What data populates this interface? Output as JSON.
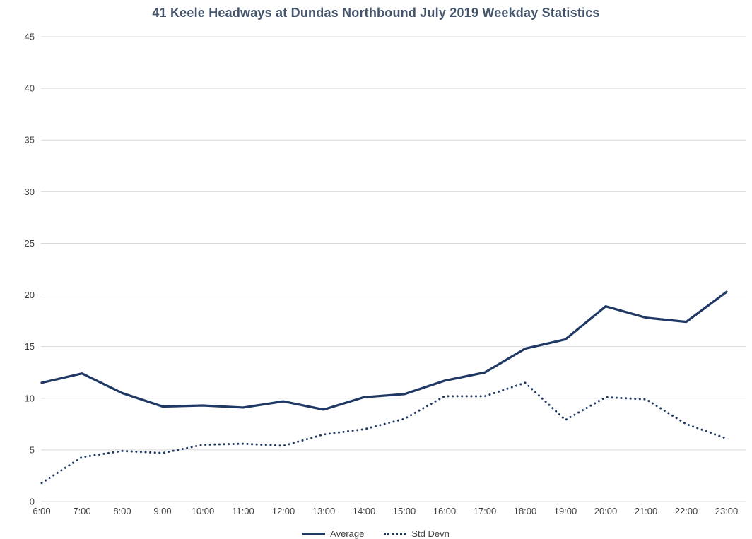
{
  "chart_data": {
    "type": "line",
    "title": "41 Keele Headways at Dundas Northbound July 2019 Weekday Statistics",
    "xlabel": "",
    "ylabel": "",
    "categories": [
      "6:00",
      "7:00",
      "8:00",
      "9:00",
      "10:00",
      "11:00",
      "12:00",
      "13:00",
      "14:00",
      "15:00",
      "16:00",
      "17:00",
      "18:00",
      "19:00",
      "20:00",
      "21:00",
      "22:00",
      "23:00"
    ],
    "series": [
      {
        "name": "Average",
        "style": "solid",
        "values": [
          11.5,
          12.4,
          10.5,
          9.2,
          9.3,
          9.1,
          9.7,
          8.9,
          10.1,
          10.4,
          11.7,
          12.5,
          14.8,
          15.7,
          18.9,
          17.8,
          17.4,
          20.3
        ]
      },
      {
        "name": "Std Devn",
        "style": "dotted",
        "values": [
          1.8,
          4.3,
          4.9,
          4.7,
          5.5,
          5.6,
          5.4,
          6.5,
          7.0,
          8.0,
          10.2,
          10.2,
          11.5,
          7.9,
          10.1,
          9.9,
          7.5,
          6.1
        ]
      }
    ],
    "ylim": [
      0,
      45
    ],
    "ytick_step": 5,
    "grid": true,
    "legend_position": "bottom",
    "colors": {
      "line": "#1F3864",
      "grid": "#D9D9D9",
      "axis_text": "#404040",
      "title": "#44546A",
      "background": "#FFFFFF"
    }
  }
}
